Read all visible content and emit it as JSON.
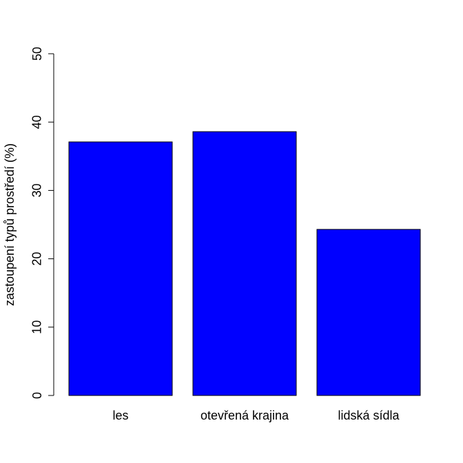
{
  "colors": {
    "bar_fill": "#0000ff",
    "bar_stroke": "#000000",
    "axis": "#000000",
    "background": "#ffffff"
  },
  "chart_data": {
    "type": "bar",
    "title": "",
    "xlabel": "",
    "ylabel": "zastoupení typů prostředí (%)",
    "categories": [
      "les",
      "otevřená krajina",
      "lidská sídla"
    ],
    "values": [
      37.1,
      38.6,
      24.3
    ],
    "ylim": [
      0,
      50
    ],
    "yticks": [
      "0",
      "10",
      "20",
      "30",
      "40",
      "50"
    ],
    "grid": false,
    "legend": "none"
  }
}
